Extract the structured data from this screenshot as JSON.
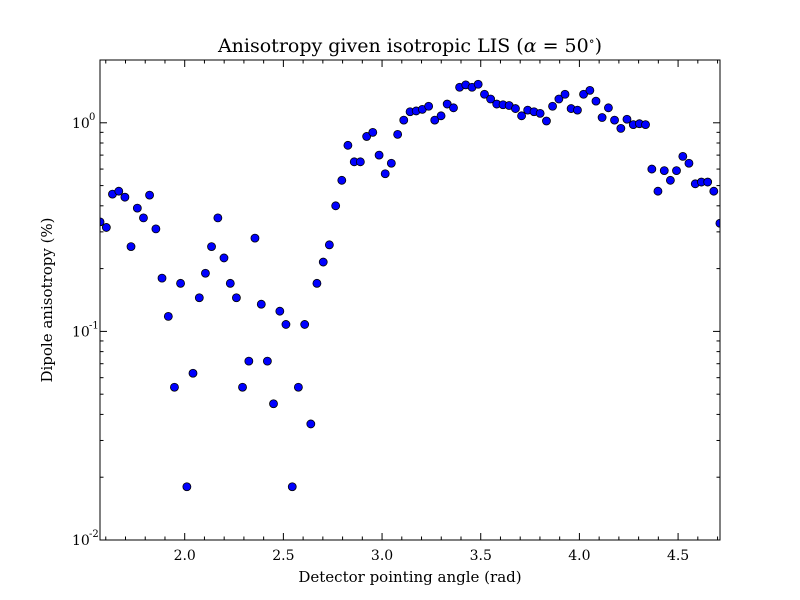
{
  "chart_data": {
    "type": "scatter",
    "title": "Anisotropy given isotropic LIS (α = 50°)",
    "xlabel": "Detector pointing angle (rad)",
    "ylabel": "Dipole anisotropy (%)",
    "xlim": [
      1.5708,
      4.7124
    ],
    "ylim": [
      0.01,
      2.0
    ],
    "yscale": "log",
    "grid": false,
    "legend": "none",
    "x_ticks": [
      2.0,
      2.5,
      3.0,
      3.5,
      4.0,
      4.5
    ],
    "x_tick_labels": [
      "2.0",
      "2.5",
      "3.0",
      "3.5",
      "4.0",
      "4.5"
    ],
    "y_ticks": [
      {
        "value": 0.01,
        "base": "10",
        "exp": "-2"
      },
      {
        "value": 0.1,
        "base": "10",
        "exp": "-1"
      },
      {
        "value": 1.0,
        "base": "10",
        "exp": "0"
      }
    ],
    "marker_color": "#0000ff",
    "marker_edge_color": "#000000",
    "x": [
      1.571,
      1.603,
      1.634,
      1.666,
      1.697,
      1.728,
      1.76,
      1.791,
      1.822,
      1.854,
      1.885,
      1.917,
      1.948,
      1.979,
      2.011,
      2.042,
      2.074,
      2.105,
      2.136,
      2.168,
      2.199,
      2.231,
      2.262,
      2.293,
      2.325,
      2.356,
      2.388,
      2.419,
      2.45,
      2.482,
      2.513,
      2.545,
      2.576,
      2.608,
      2.639,
      2.67,
      2.702,
      2.733,
      2.765,
      2.796,
      2.827,
      2.859,
      2.89,
      2.922,
      2.953,
      2.985,
      3.016,
      3.047,
      3.079,
      3.11,
      3.142,
      3.173,
      3.204,
      3.236,
      3.267,
      3.299,
      3.33,
      3.362,
      3.393,
      3.424,
      3.456,
      3.487,
      3.519,
      3.55,
      3.581,
      3.613,
      3.644,
      3.676,
      3.707,
      3.738,
      3.77,
      3.801,
      3.833,
      3.864,
      3.896,
      3.927,
      3.958,
      3.99,
      4.021,
      4.053,
      4.084,
      4.115,
      4.147,
      4.178,
      4.21,
      4.241,
      4.273,
      4.304,
      4.335,
      4.367,
      4.398,
      4.43,
      4.461,
      4.492,
      4.524,
      4.555,
      4.587,
      4.618,
      4.65,
      4.681,
      4.712
    ],
    "y": [
      0.335,
      0.315,
      0.455,
      0.47,
      0.44,
      0.255,
      0.39,
      0.35,
      0.45,
      0.31,
      0.18,
      0.118,
      0.054,
      0.17,
      0.018,
      0.063,
      0.145,
      0.19,
      0.255,
      0.35,
      0.225,
      0.17,
      0.145,
      0.054,
      0.072,
      0.28,
      0.135,
      0.072,
      0.045,
      0.125,
      0.108,
      0.018,
      0.054,
      0.108,
      0.036,
      0.17,
      0.215,
      0.26,
      0.4,
      0.53,
      0.78,
      0.65,
      0.65,
      0.86,
      0.9,
      0.7,
      0.57,
      0.64,
      0.88,
      1.03,
      1.13,
      1.14,
      1.16,
      1.2,
      1.03,
      1.08,
      1.23,
      1.18,
      1.48,
      1.52,
      1.48,
      1.53,
      1.37,
      1.3,
      1.23,
      1.22,
      1.21,
      1.17,
      1.08,
      1.15,
      1.13,
      1.11,
      1.02,
      1.2,
      1.3,
      1.37,
      1.17,
      1.15,
      1.37,
      1.43,
      1.27,
      1.06,
      1.18,
      1.03,
      0.94,
      1.04,
      0.98,
      0.99,
      0.98,
      0.6,
      0.47,
      0.59,
      0.53,
      0.59,
      0.69,
      0.64,
      0.51,
      0.52,
      0.52,
      0.47,
      0.33
    ]
  }
}
